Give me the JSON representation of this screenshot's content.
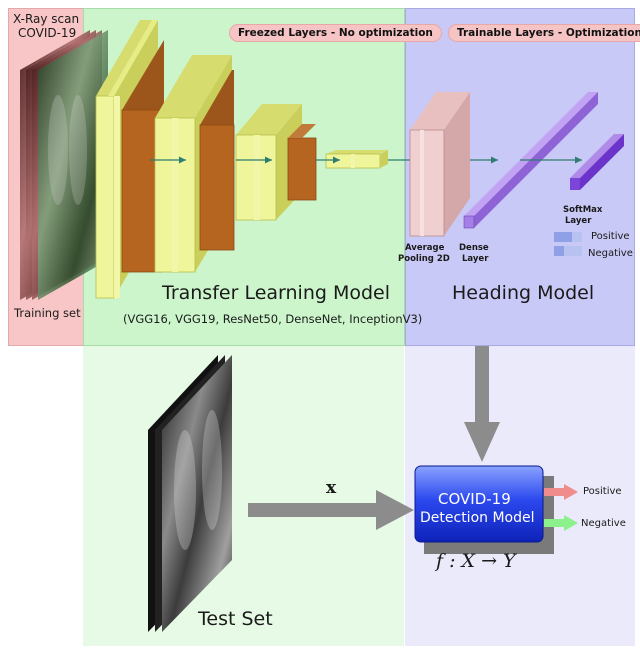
{
  "input": {
    "title_line1": "X-Ray scan",
    "title_line2": "COVID-19",
    "training_label": "Training set"
  },
  "transfer": {
    "badge": "Freezed Layers - No optimization",
    "title": "Transfer Learning Model",
    "subtitle": "(VGG16, VGG19, ResNet50, DenseNet, InceptionV3)"
  },
  "heading": {
    "badge": "Trainable Layers - Optimization",
    "title": "Heading Model",
    "avg_pool_line1": "Average",
    "avg_pool_line2": "Pooling 2D",
    "dense_line1": "Dense",
    "dense_line2": "Layer",
    "softmax_line1": "SoftMax",
    "softmax_line2": "Layer",
    "positive": "Positive",
    "negative": "Negative"
  },
  "test": {
    "label": "Test Set",
    "x_label": "x"
  },
  "detector": {
    "line1": "COVID-19",
    "line2": "Detection Model",
    "formula": "f : X → Y",
    "out_positive": "Positive",
    "out_negative": "Negative"
  },
  "colors": {
    "input_panel": "#f8c6c6",
    "transfer_panel": "#ccf5cc",
    "heading_panel": "#c9c9f7",
    "bottom_green": "#e6fae6",
    "bottom_purple": "#eaeafb",
    "conv_face": "#eef59a",
    "conv_inner": "#b5651f",
    "dense_purple": "#a57ee6",
    "detector_blue": "#1a34d8",
    "positive_arrow": "#f08c8c",
    "negative_arrow": "#8cf08c"
  }
}
